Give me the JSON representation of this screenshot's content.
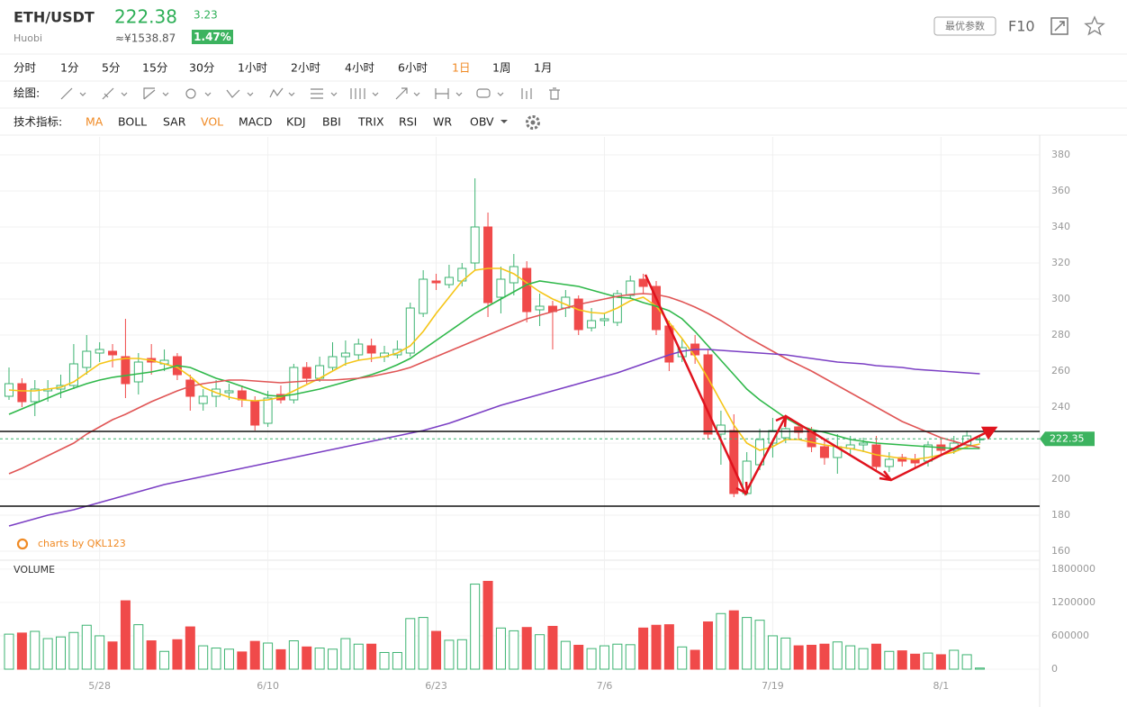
{
  "header": {
    "symbol": "ETH/USDT",
    "exchange": "Huobi",
    "price": "222.38",
    "cny": "≈¥1538.87",
    "change": "3.23",
    "change_pct": "1.47%",
    "best_params": "最优参数",
    "f10": "F10"
  },
  "periods": [
    "分时",
    "1分",
    "5分",
    "15分",
    "30分",
    "1小时",
    "2小时",
    "4小时",
    "6小时",
    "1日",
    "1周",
    "1月"
  ],
  "draw_label": "绘图:",
  "indicator_label": "技术指标:",
  "indicators": [
    "MA",
    "BOLL",
    "SAR",
    "VOL",
    "MACD",
    "KDJ",
    "BBI",
    "TRIX",
    "RSI",
    "WR",
    "OBV"
  ],
  "watermark": "charts by QKL123",
  "chart_data": [
    {
      "type": "candlestick",
      "up_color": "#3cb371",
      "down_color": "#f04a4a",
      "ylim": [
        156,
        390
      ],
      "yticks": [
        160,
        180,
        200,
        220,
        240,
        260,
        280,
        300,
        320,
        340,
        360,
        380
      ],
      "grid": true,
      "open": [
        246,
        253,
        243,
        249,
        250,
        252,
        262,
        270,
        271,
        268,
        254,
        267,
        264,
        268,
        255,
        242,
        246,
        248,
        249,
        243,
        231,
        247,
        244,
        262,
        256,
        262,
        268,
        269,
        274,
        268,
        269,
        270,
        292,
        310,
        308,
        310,
        320,
        340,
        301,
        309,
        317,
        294,
        296,
        295,
        300,
        284,
        288,
        287,
        302,
        311,
        307,
        285,
        268,
        275,
        269,
        225,
        227,
        192,
        208,
        220,
        223,
        229,
        226,
        218,
        212,
        217,
        219,
        219,
        207,
        212,
        211,
        210,
        219,
        216,
        219,
        222
      ],
      "high": [
        262,
        256,
        255,
        255,
        258,
        275,
        280,
        276,
        275,
        289,
        270,
        275,
        272,
        270,
        258,
        250,
        255,
        253,
        252,
        246,
        249,
        252,
        264,
        265,
        268,
        276,
        277,
        278,
        278,
        274,
        277,
        298,
        316,
        314,
        319,
        320,
        367,
        348,
        318,
        325,
        321,
        303,
        299,
        305,
        302,
        295,
        292,
        305,
        313,
        314,
        310,
        288,
        278,
        280,
        272,
        238,
        236,
        215,
        228,
        234,
        232,
        231,
        229,
        222,
        225,
        224,
        223,
        224,
        215,
        214,
        214,
        221,
        222,
        224,
        227,
        224
      ],
      "low": [
        244,
        240,
        235,
        243,
        245,
        250,
        258,
        265,
        262,
        245,
        247,
        258,
        260,
        255,
        238,
        238,
        240,
        244,
        240,
        227,
        229,
        242,
        242,
        253,
        254,
        260,
        263,
        266,
        265,
        265,
        267,
        268,
        290,
        305,
        306,
        307,
        316,
        290,
        292,
        302,
        287,
        285,
        272,
        290,
        280,
        282,
        285,
        285,
        300,
        303,
        280,
        260,
        265,
        264,
        222,
        208,
        190,
        191,
        205,
        212,
        220,
        222,
        215,
        208,
        203,
        214,
        215,
        204,
        204,
        207,
        206,
        207,
        213,
        214,
        217,
        220
      ],
      "close": [
        253,
        243,
        250,
        250,
        252,
        264,
        271,
        272,
        269,
        253,
        265,
        265,
        266,
        258,
        246,
        246,
        250,
        249,
        244,
        230,
        245,
        244,
        262,
        256,
        263,
        268,
        270,
        275,
        270,
        270,
        272,
        295,
        311,
        309,
        312,
        317,
        340,
        298,
        311,
        318,
        293,
        296,
        293,
        301,
        283,
        288,
        289,
        303,
        310,
        307,
        283,
        265,
        273,
        269,
        225,
        230,
        192,
        210,
        222,
        227,
        228,
        226,
        218,
        212,
        218,
        219,
        220,
        207,
        211,
        210,
        209,
        219,
        216,
        220,
        224,
        222.35
      ],
      "series": [
        {
          "color": "#f5c518",
          "values": [
            249.5,
            249,
            249,
            250,
            251,
            254,
            259,
            264,
            266,
            267,
            267,
            266,
            264,
            262,
            257,
            251,
            248,
            245.5,
            244,
            243.5,
            244,
            245.5,
            249,
            252.5,
            256,
            260,
            264,
            266,
            267,
            268,
            270,
            274,
            282,
            292,
            301,
            310,
            316,
            317,
            317,
            314,
            309,
            304,
            300,
            297,
            294,
            292.5,
            292,
            295,
            299,
            301,
            296,
            287,
            278,
            268,
            256,
            243,
            230,
            220,
            216,
            218,
            222,
            222,
            220.5,
            219,
            218,
            217,
            215.5,
            213.5,
            212.5,
            211.5,
            211,
            212,
            213.5,
            215,
            218,
            219.5
          ]
        },
        {
          "color": "#2fb84a",
          "values": [
            236,
            239,
            242,
            245,
            248,
            250.5,
            253,
            255,
            256.5,
            257.5,
            258.5,
            259.5,
            261,
            263,
            262,
            259,
            256,
            254,
            251.5,
            249,
            246.5,
            246,
            247,
            248.5,
            250,
            252,
            254,
            256,
            258,
            260.5,
            263.5,
            267,
            272,
            277,
            282,
            287,
            292,
            296,
            300,
            304,
            308,
            310,
            309,
            308,
            307,
            305,
            303,
            301,
            300.5,
            298,
            296,
            293.5,
            289,
            282,
            274,
            266,
            258,
            250,
            244,
            239,
            234,
            230,
            227.5,
            226,
            224,
            222,
            221,
            220,
            219.5,
            219,
            218.5,
            218,
            217.5,
            217,
            217,
            217
          ]
        },
        {
          "color": "#e05555",
          "values": [
            203,
            206,
            209.5,
            213,
            216.5,
            220,
            225,
            229,
            233,
            236,
            239.5,
            243,
            246,
            249,
            251.5,
            253,
            254,
            255,
            255,
            254.5,
            254,
            253.5,
            254,
            254.5,
            255,
            255,
            255.5,
            256,
            257,
            258.5,
            260,
            262,
            265,
            268,
            271,
            274,
            277,
            280,
            283,
            286,
            289,
            291,
            293,
            295,
            297,
            298.5,
            300,
            301.5,
            302.5,
            303,
            302.5,
            301,
            298.5,
            295.5,
            292,
            288,
            283.5,
            279,
            275,
            271,
            267,
            263.5,
            260,
            256,
            252,
            248,
            244,
            240,
            236,
            232,
            229,
            226,
            223,
            221,
            219,
            217.5
          ]
        },
        {
          "color": "#7b3fc4",
          "values": [
            174,
            176,
            178,
            180,
            181.5,
            183,
            185,
            187,
            189,
            191,
            193,
            195,
            197,
            198.5,
            200,
            201.5,
            203,
            204.5,
            206,
            207.5,
            209,
            210.5,
            212,
            213.5,
            215,
            216.5,
            218,
            219.5,
            221,
            222.5,
            224,
            225.5,
            227,
            229,
            231,
            233.5,
            236,
            238.5,
            241,
            243,
            245,
            247,
            249,
            251,
            253,
            255,
            257,
            259,
            261.5,
            264,
            266.5,
            269,
            271,
            272,
            272,
            271.5,
            271,
            270.5,
            270,
            269.5,
            269,
            268,
            267,
            266,
            265,
            264.5,
            264,
            263,
            262.5,
            262,
            261,
            260.5,
            260,
            259.5,
            259,
            258.5
          ]
        }
      ],
      "hlines": [
        226.5,
        185
      ],
      "last": 222.35
    },
    {
      "type": "bar",
      "title": "VOLUME",
      "categories": [
        null,
        null,
        null,
        null,
        null,
        null,
        null,
        "5/28",
        null,
        null,
        null,
        null,
        null,
        null,
        null,
        null,
        null,
        null,
        null,
        null,
        "6/10",
        null,
        null,
        null,
        null,
        null,
        null,
        null,
        null,
        null,
        null,
        null,
        null,
        "6/23",
        null,
        null,
        null,
        null,
        null,
        null,
        null,
        null,
        null,
        null,
        null,
        null,
        "7/6",
        null,
        null,
        null,
        null,
        null,
        null,
        null,
        null,
        null,
        null,
        null,
        null,
        "7/19",
        null,
        null,
        null,
        null,
        null,
        null,
        null,
        null,
        null,
        null,
        null,
        null,
        "8/1",
        null,
        null,
        null
      ],
      "ylim": [
        0,
        1960000
      ],
      "yticks": [
        0,
        600000,
        1200000,
        1800000
      ],
      "values": [
        630000,
        650000,
        680000,
        550000,
        580000,
        660000,
        790000,
        600000,
        490000,
        1230000,
        800000,
        510000,
        320000,
        530000,
        760000,
        420000,
        380000,
        360000,
        310000,
        500000,
        470000,
        350000,
        510000,
        400000,
        380000,
        360000,
        550000,
        450000,
        450000,
        300000,
        300000,
        910000,
        930000,
        680000,
        520000,
        530000,
        1530000,
        1580000,
        740000,
        690000,
        750000,
        620000,
        770000,
        500000,
        430000,
        370000,
        420000,
        450000,
        440000,
        740000,
        790000,
        800000,
        400000,
        340000,
        850000,
        1000000,
        1050000,
        930000,
        880000,
        600000,
        560000,
        420000,
        430000,
        450000,
        490000,
        420000,
        370000,
        450000,
        320000,
        330000,
        270000,
        290000,
        260000,
        340000,
        260000,
        20000
      ]
    }
  ]
}
